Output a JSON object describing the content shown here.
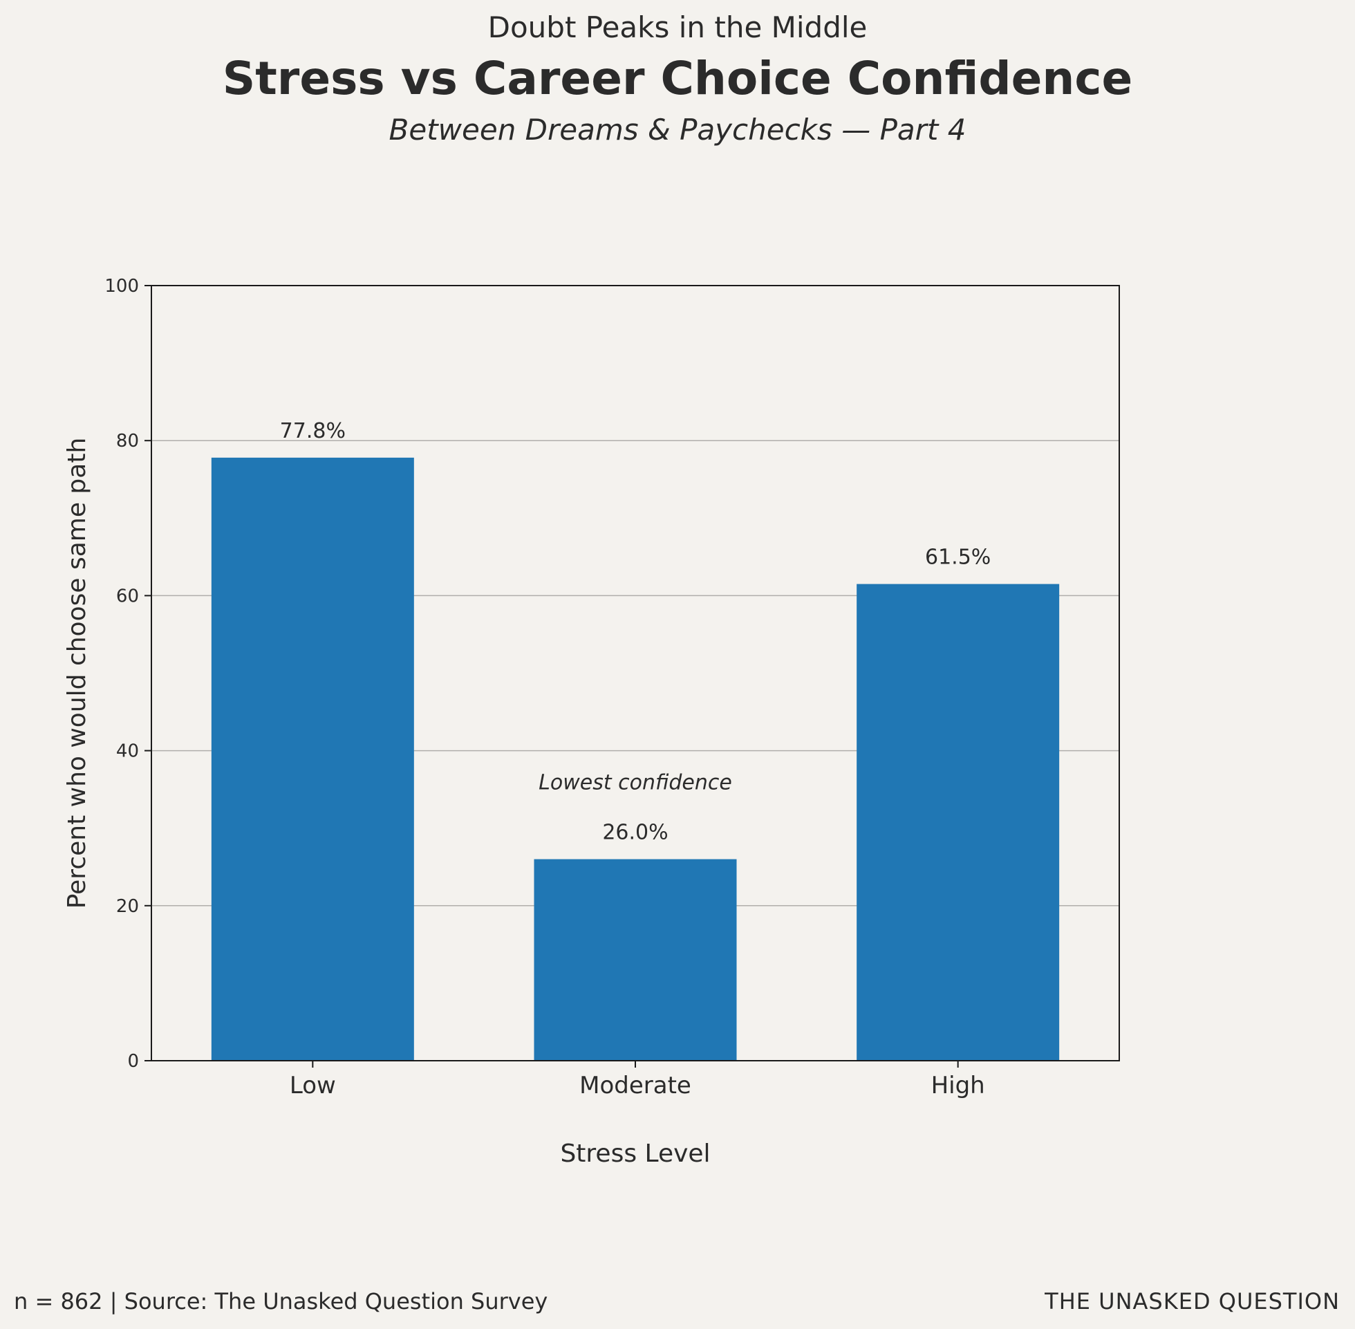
{
  "header": {
    "kicker": "Doubt Peaks in the Middle",
    "title": "Stress vs Career Choice Confidence",
    "subtitle": "Between Dreams & Paychecks — Part 4"
  },
  "chart_data": {
    "type": "bar",
    "categories": [
      "Low",
      "Moderate",
      "High"
    ],
    "values": [
      77.8,
      26.0,
      61.5
    ],
    "value_labels": [
      "77.8%",
      "26.0%",
      "61.5%"
    ],
    "xlabel": "Stress Level",
    "ylabel": "Percent who would choose same path",
    "ylim": [
      0,
      100
    ],
    "yticks": [
      0,
      20,
      40,
      60,
      80,
      100
    ],
    "grid": "horizontal",
    "bar_color": "#2077b4",
    "annotations": [
      {
        "text": "Lowest confidence",
        "category": "Moderate",
        "y": 36
      }
    ]
  },
  "footer": {
    "source": "n = 862 | Source: The Unasked Question Survey",
    "brand": "THE UNASKED QUESTION"
  }
}
